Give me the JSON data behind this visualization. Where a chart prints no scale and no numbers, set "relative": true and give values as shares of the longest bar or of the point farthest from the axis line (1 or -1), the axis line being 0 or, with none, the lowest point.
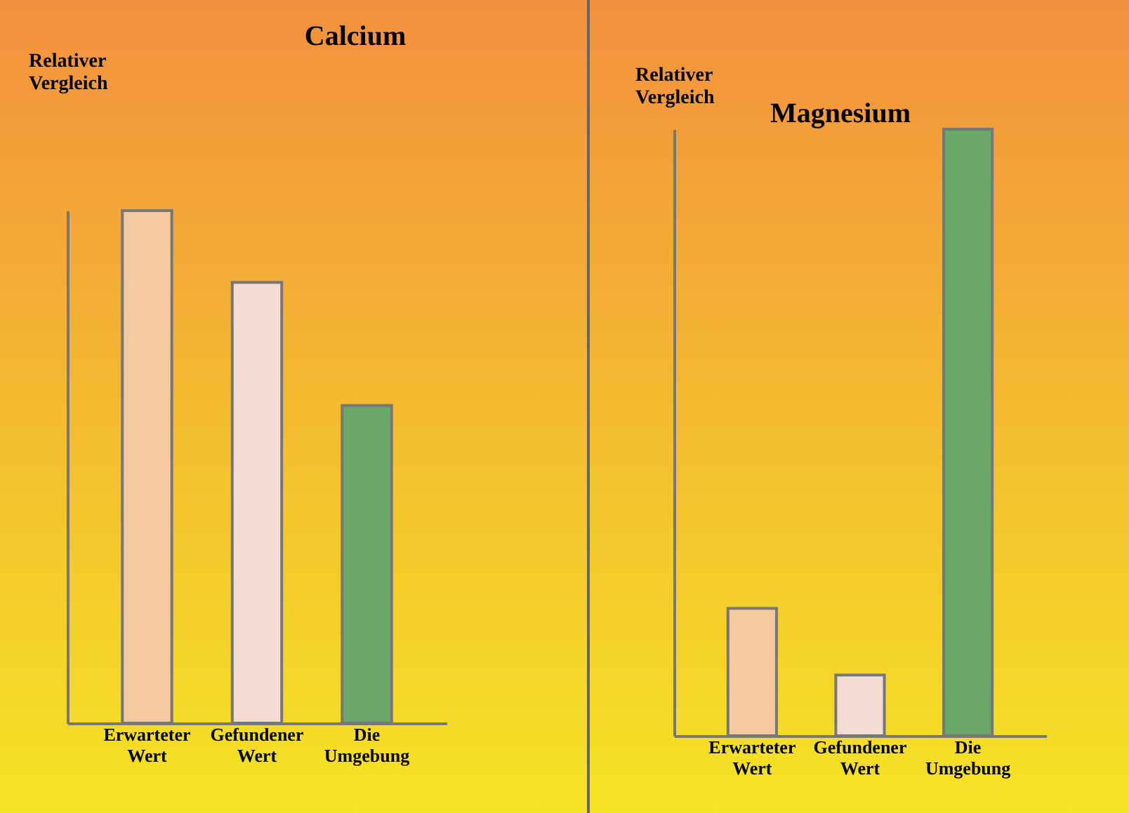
{
  "chart_data": [
    {
      "type": "bar",
      "title": "Calcium",
      "ylabel": "Relativer Vergleich",
      "relative": true,
      "categories": [
        "Erwarteter Wert",
        "Gefundener Wert",
        "Die Umgebung"
      ],
      "colors": [
        "#f5c9a0",
        "#f3dcd2",
        "#6aa86a"
      ],
      "values": [
        1,
        0.86,
        0.62
      ]
    },
    {
      "type": "bar",
      "title": "Magnesium",
      "ylabel": "Relativer Vergleich",
      "relative": true,
      "categories": [
        "Erwarteter Wert",
        "Gefundener Wert",
        "Die Umgebung"
      ],
      "colors": [
        "#f5c9a0",
        "#f3dcd2",
        "#6aa86a"
      ],
      "values": [
        0.21,
        0.1,
        1
      ]
    }
  ]
}
